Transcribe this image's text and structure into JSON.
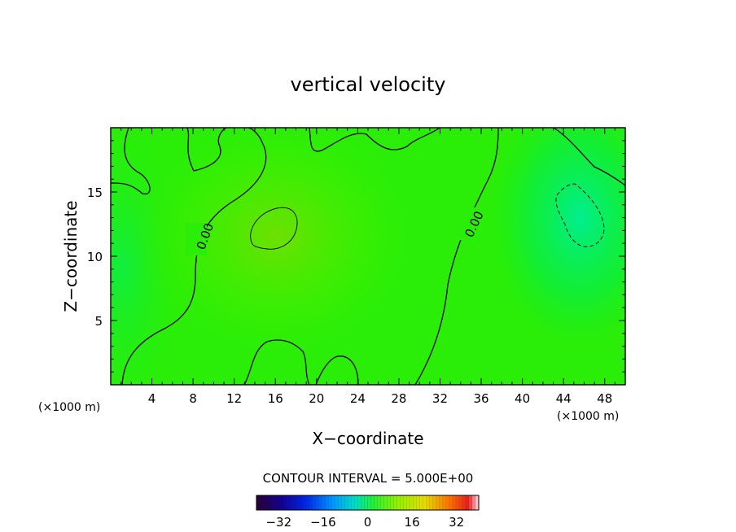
{
  "chart_data": {
    "type": "heatmap",
    "title": "vertical velocity",
    "xlabel": "X−coordinate",
    "ylabel": "Z−coordinate",
    "x_unit": "(×1000 m)",
    "y_unit": "(×1000 m)",
    "xlim": [
      0,
      50
    ],
    "ylim": [
      0,
      20
    ],
    "x_ticks": [
      4,
      8,
      12,
      16,
      20,
      24,
      28,
      32,
      36,
      40,
      44,
      48
    ],
    "y_ticks": [
      5,
      10,
      15
    ],
    "x_tick_labels": [
      "4",
      "8",
      "12",
      "16",
      "20",
      "24",
      "28",
      "32",
      "36",
      "40",
      "44",
      "48"
    ],
    "y_tick_labels": [
      "5",
      "10",
      "15"
    ],
    "contour_interval_text": "CONTOUR INTERVAL = 5.000E+00",
    "contour_labels": [
      "0.00",
      "0.00"
    ],
    "colorbar": {
      "range": [
        -40,
        40
      ],
      "ticks": [
        -32,
        -16,
        0,
        16,
        32
      ],
      "tick_labels": [
        "−32",
        "−16",
        "0",
        "16",
        "32"
      ]
    },
    "field_features": [
      {
        "kind": "positive-max",
        "x": 16.5,
        "z": 12.0
      },
      {
        "kind": "negative-min",
        "x": 45.5,
        "z": 13.0
      }
    ]
  }
}
